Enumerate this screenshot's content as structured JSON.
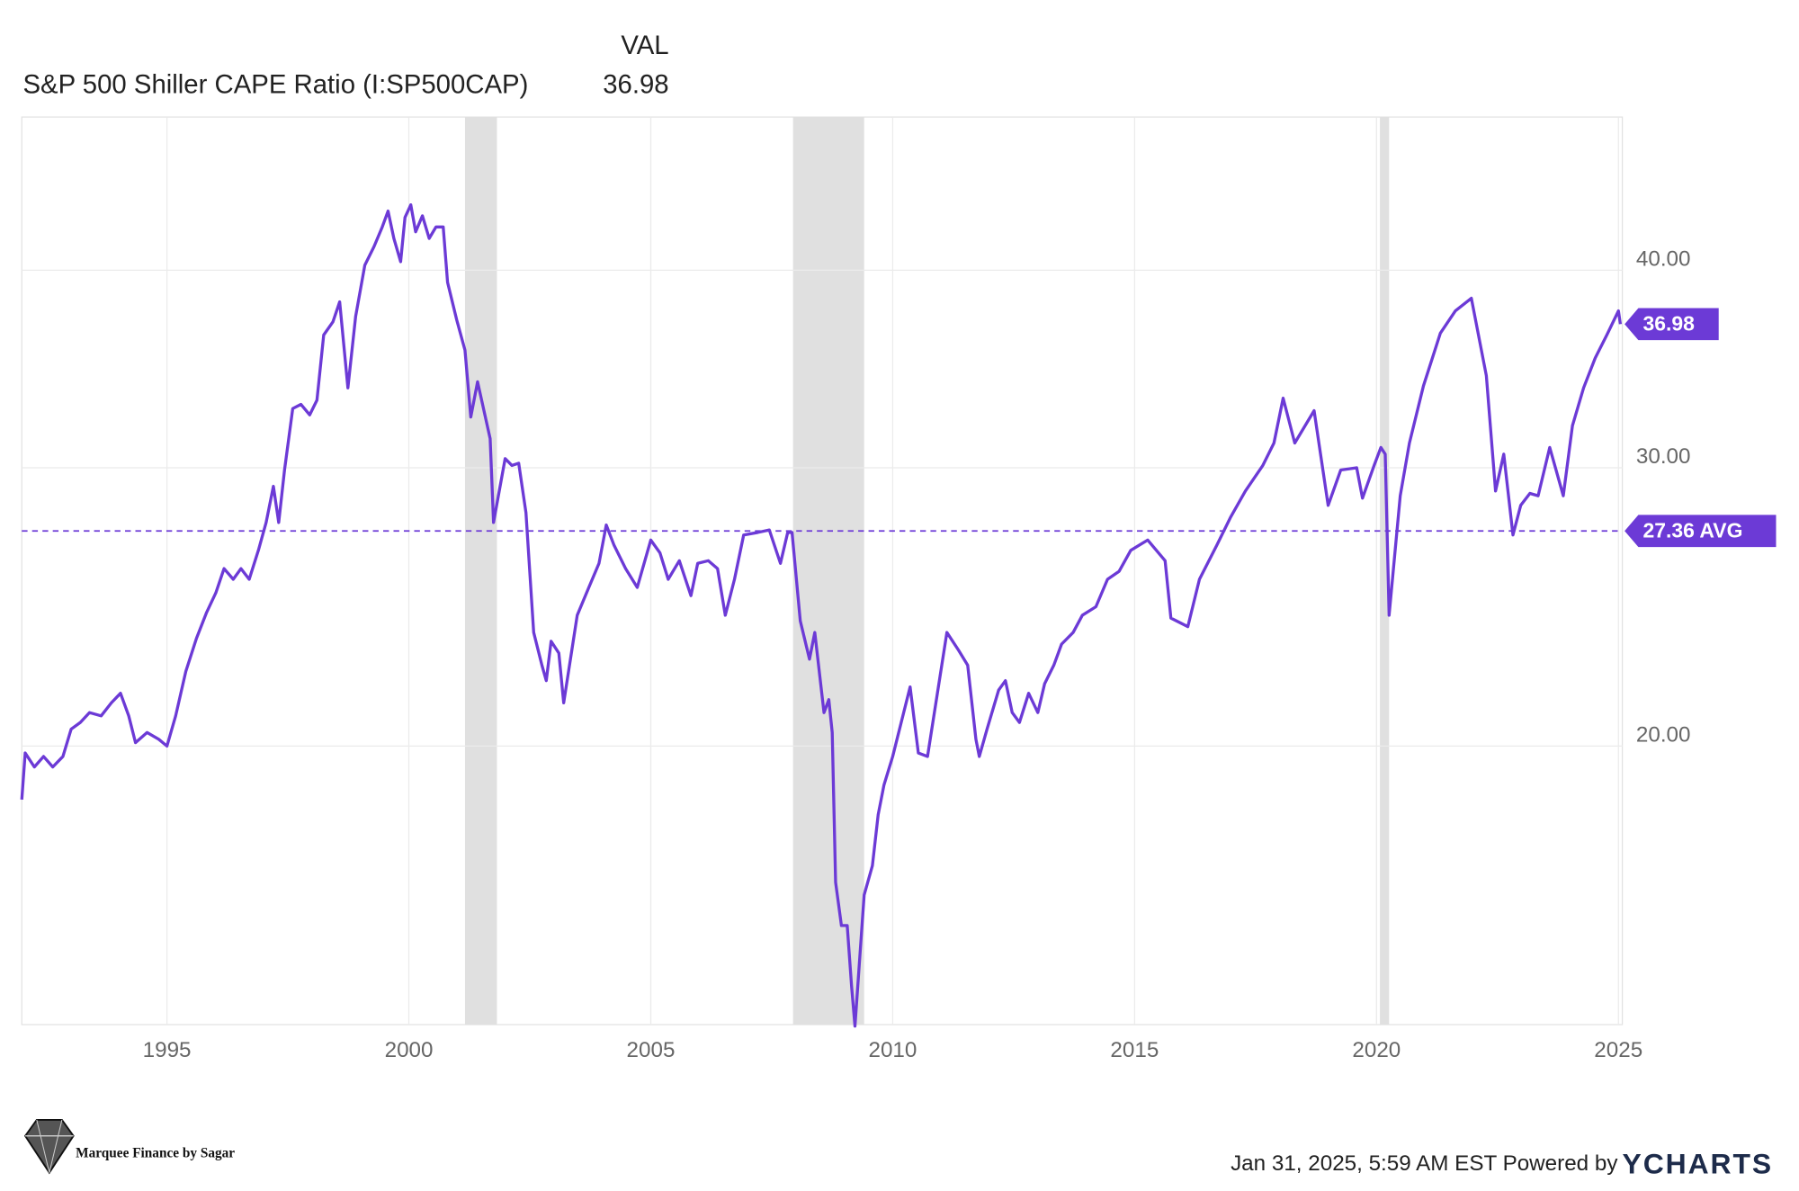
{
  "chart_data": {
    "type": "line",
    "value_header": "VAL",
    "log_scale": true,
    "grid": true,
    "xlim": [
      1992,
      2025.08
    ],
    "xticks": [
      1995,
      2000,
      2005,
      2010,
      2015,
      2020,
      2025
    ],
    "ylim": [
      13.33,
      50
    ],
    "yticks": [
      {
        "value": 20,
        "label": "20.00"
      },
      {
        "value": 30,
        "label": "30.00"
      },
      {
        "value": 40,
        "label": "40.00"
      }
    ],
    "average": {
      "value": 27.36,
      "label": "27.36 AVG",
      "color": "#6c3ad6"
    },
    "recessions": [
      [
        2001.16,
        2001.82
      ],
      [
        2007.94,
        2009.41
      ],
      [
        2020.07,
        2020.26
      ]
    ],
    "x": [
      1992.0,
      1992.07,
      1992.26,
      1992.45,
      1992.64,
      1992.85,
      1993.02,
      1993.21,
      1993.4,
      1993.64,
      1993.85,
      1994.04,
      1994.21,
      1994.35,
      1994.59,
      1994.83,
      1995.0,
      1995.18,
      1995.39,
      1995.61,
      1995.82,
      1996.01,
      1996.18,
      1996.37,
      1996.53,
      1996.7,
      1996.89,
      1997.05,
      1997.2,
      1997.31,
      1997.43,
      1997.6,
      1997.77,
      1997.95,
      1998.1,
      1998.24,
      1998.43,
      1998.57,
      1998.74,
      1998.9,
      1999.09,
      1999.28,
      1999.45,
      1999.57,
      1999.69,
      1999.83,
      1999.92,
      2000.04,
      2000.14,
      2000.28,
      2000.42,
      2000.56,
      2000.71,
      2000.8,
      2000.99,
      2001.16,
      2001.28,
      2001.42,
      2001.68,
      2001.75,
      2001.99,
      2002.13,
      2002.27,
      2002.42,
      2002.58,
      2002.75,
      2002.84,
      2002.94,
      2003.1,
      2003.2,
      2003.48,
      2003.72,
      2003.93,
      2004.08,
      2004.24,
      2004.48,
      2004.72,
      2005.0,
      2005.19,
      2005.36,
      2005.59,
      2005.83,
      2005.97,
      2006.19,
      2006.38,
      2006.54,
      2006.73,
      2006.92,
      2007.21,
      2007.45,
      2007.68,
      2007.83,
      2007.92,
      2008.09,
      2008.28,
      2008.39,
      2008.58,
      2008.68,
      2008.75,
      2008.82,
      2008.94,
      2009.06,
      2009.15,
      2009.22,
      2009.41,
      2009.58,
      2009.7,
      2009.82,
      2010.0,
      2010.36,
      2010.53,
      2010.72,
      2011.12,
      2011.36,
      2011.55,
      2011.72,
      2011.79,
      2011.95,
      2012.19,
      2012.33,
      2012.47,
      2012.62,
      2012.81,
      2013.0,
      2013.14,
      2013.33,
      2013.49,
      2013.73,
      2013.92,
      2014.2,
      2014.44,
      2014.68,
      2014.92,
      2015.27,
      2015.63,
      2015.75,
      2016.1,
      2016.34,
      2016.7,
      2016.98,
      2017.29,
      2017.65,
      2017.88,
      2018.07,
      2018.31,
      2018.71,
      2019.0,
      2019.26,
      2019.59,
      2019.71,
      2019.95,
      2020.09,
      2020.18,
      2020.26,
      2020.49,
      2020.68,
      2020.97,
      2021.32,
      2021.63,
      2021.96,
      2022.27,
      2022.46,
      2022.63,
      2022.82,
      2022.98,
      2023.17,
      2023.34,
      2023.58,
      2023.86,
      2024.05,
      2024.28,
      2024.52,
      2024.76,
      2025.0,
      2025.04
    ],
    "series": [
      {
        "name": "S&P 500 Shiller CAPE Ratio (I:SP500CAP)",
        "color": "#6c3ad6",
        "values": [
          18.5,
          19.8,
          19.4,
          19.7,
          19.4,
          19.7,
          20.5,
          20.7,
          21.0,
          20.9,
          21.3,
          21.6,
          20.9,
          20.1,
          20.4,
          20.2,
          20.0,
          20.9,
          22.3,
          23.4,
          24.3,
          25.0,
          25.9,
          25.5,
          25.9,
          25.5,
          26.6,
          27.7,
          29.2,
          27.7,
          29.9,
          32.7,
          32.9,
          32.4,
          33.1,
          36.4,
          37.1,
          38.2,
          33.7,
          37.4,
          40.3,
          41.4,
          42.6,
          43.6,
          41.9,
          40.5,
          43.2,
          44.0,
          42.3,
          43.3,
          41.9,
          42.6,
          42.6,
          39.3,
          37.2,
          35.6,
          32.3,
          34.0,
          31.3,
          27.7,
          30.4,
          30.1,
          30.2,
          28.1,
          23.6,
          22.5,
          22.0,
          23.3,
          22.9,
          21.3,
          24.2,
          25.2,
          26.1,
          27.6,
          26.8,
          25.9,
          25.2,
          27.0,
          26.5,
          25.5,
          26.2,
          24.9,
          26.1,
          26.2,
          25.9,
          24.2,
          25.5,
          27.2,
          27.3,
          27.4,
          26.1,
          27.3,
          27.3,
          24.0,
          22.7,
          23.6,
          21.0,
          21.4,
          20.4,
          16.4,
          15.4,
          15.4,
          14.1,
          13.3,
          16.1,
          16.8,
          18.1,
          18.9,
          19.7,
          21.8,
          19.8,
          19.7,
          23.6,
          23.0,
          22.5,
          20.2,
          19.7,
          20.5,
          21.7,
          22.0,
          21.0,
          20.7,
          21.6,
          21.0,
          21.9,
          22.5,
          23.2,
          23.6,
          24.2,
          24.5,
          25.5,
          25.8,
          26.6,
          27.0,
          26.2,
          24.1,
          23.8,
          25.5,
          26.8,
          27.9,
          29.0,
          30.1,
          31.1,
          33.2,
          31.1,
          32.6,
          28.4,
          29.9,
          30.0,
          28.7,
          30.1,
          30.9,
          30.6,
          24.2,
          28.8,
          31.1,
          33.8,
          36.5,
          37.7,
          38.4,
          34.3,
          29.0,
          30.6,
          27.2,
          28.4,
          28.9,
          28.8,
          30.9,
          28.8,
          31.9,
          33.7,
          35.2,
          36.4,
          37.7,
          36.98
        ]
      }
    ]
  },
  "footer": {
    "timestamp": "Jan 31, 2025, 5:59 AM EST Powered by",
    "brand": "YCHARTS",
    "watermark": "Marquee Finance by Sagar"
  }
}
